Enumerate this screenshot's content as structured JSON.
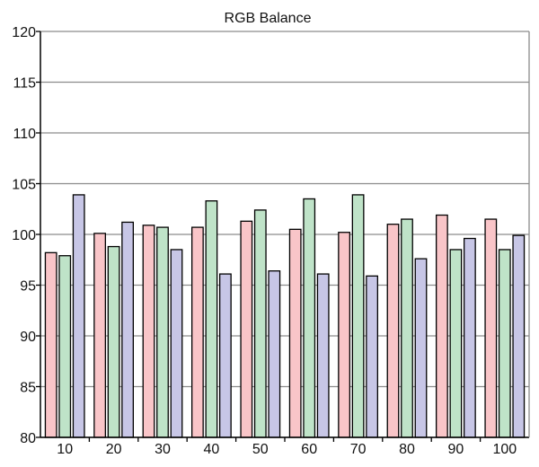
{
  "chart_data": {
    "type": "bar",
    "title": "RGB Balance",
    "xlabel": "",
    "ylabel": "",
    "categories": [
      "10",
      "20",
      "30",
      "40",
      "50",
      "60",
      "70",
      "80",
      "90",
      "100"
    ],
    "series": [
      {
        "color": "#f9c5c8",
        "values": [
          98.2,
          100.1,
          100.9,
          100.7,
          101.3,
          100.5,
          100.2,
          101.0,
          101.9,
          101.5
        ]
      },
      {
        "color": "#bfe3c8",
        "values": [
          97.9,
          98.8,
          100.7,
          103.3,
          102.4,
          103.5,
          103.9,
          101.5,
          98.5,
          98.5
        ]
      },
      {
        "color": "#c7c6e6",
        "values": [
          103.9,
          101.2,
          98.5,
          96.1,
          96.4,
          96.1,
          95.9,
          97.6,
          99.6,
          99.9
        ]
      }
    ],
    "ylim": [
      80,
      120
    ],
    "yticks": [
      80,
      85,
      90,
      95,
      100,
      105,
      110,
      115,
      120
    ],
    "grid": true,
    "legend": "none"
  }
}
